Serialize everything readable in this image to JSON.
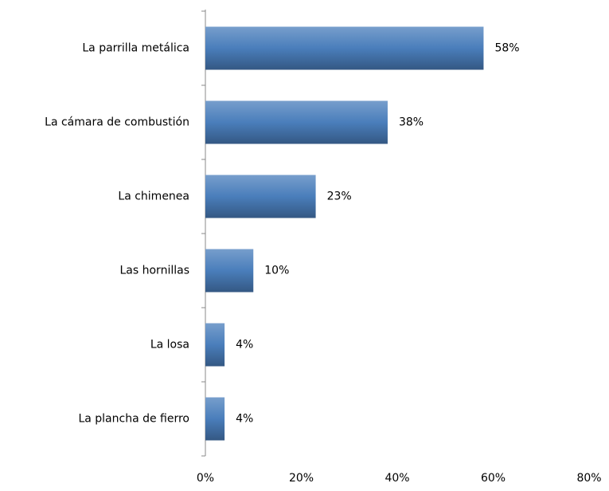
{
  "chart_data": {
    "type": "bar",
    "orientation": "horizontal",
    "categories": [
      "La parrilla metálica",
      "La cámara de combustión",
      "La chimenea",
      "Las hornillas",
      "La losa",
      "La plancha de fierro"
    ],
    "values": [
      58,
      38,
      23,
      10,
      4,
      4
    ],
    "value_labels": [
      "58%",
      "38%",
      "23%",
      "10%",
      "4%",
      "4%"
    ],
    "color": "#4a7ebb",
    "xlim": [
      0,
      80
    ],
    "xticks": [
      {
        "value": 0,
        "label": "0%"
      },
      {
        "value": 20,
        "label": "20%"
      },
      {
        "value": 40,
        "label": "40%"
      },
      {
        "value": 60,
        "label": "60%"
      },
      {
        "value": 80,
        "label": "80%"
      }
    ],
    "grid": false
  }
}
